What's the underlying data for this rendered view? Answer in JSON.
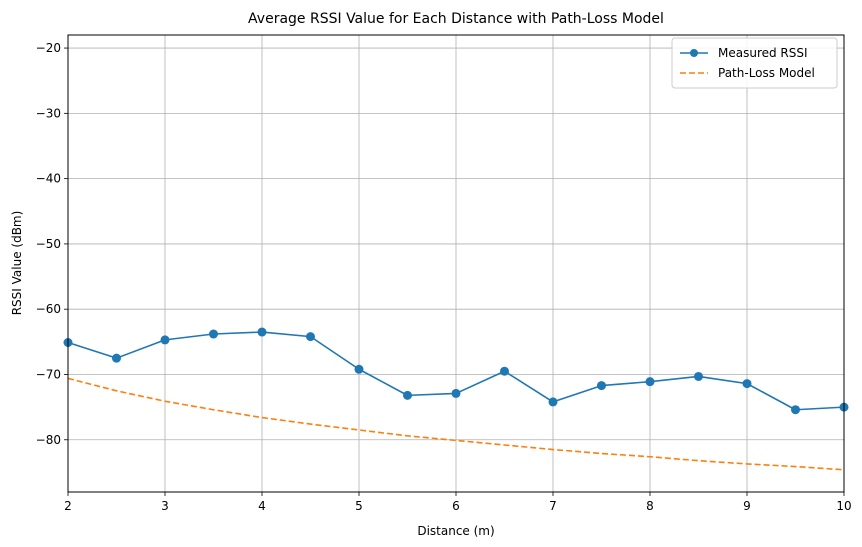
{
  "chart_data": {
    "type": "line",
    "title": "Average RSSI Value for Each Distance with Path-Loss Model",
    "xlabel": "Distance (m)",
    "ylabel": "RSSI Value (dBm)",
    "xlim": [
      2,
      10
    ],
    "ylim": [
      -88,
      -18
    ],
    "xticks": [
      2,
      3,
      4,
      5,
      6,
      7,
      8,
      9,
      10
    ],
    "yticks": [
      -80,
      -70,
      -60,
      -50,
      -40,
      -30,
      -20
    ],
    "grid": true,
    "legend_position": "top-right",
    "series": [
      {
        "name": "Measured RSSI",
        "style": "solid-marker",
        "color": "#1f77b4",
        "x": [
          2,
          2.5,
          3,
          3.5,
          4,
          4.5,
          5,
          5.5,
          6,
          6.5,
          7,
          7.5,
          8,
          8.5,
          9,
          9.5,
          10
        ],
        "y": [
          -65.1,
          -67.5,
          -64.7,
          -63.8,
          -63.5,
          -64.2,
          -69.2,
          -73.2,
          -72.9,
          -69.5,
          -74.2,
          -71.7,
          -71.1,
          -70.3,
          -71.4,
          -75.4,
          -75.0
        ]
      },
      {
        "name": "Path-Loss Model",
        "style": "dashed",
        "color": "#ff7f0e",
        "x": [
          2,
          2.5,
          3,
          3.5,
          4,
          4.5,
          5,
          5.5,
          6,
          6.5,
          7,
          7.5,
          8,
          8.5,
          9,
          9.5,
          10
        ],
        "y": [
          -70.6,
          -72.5,
          -74.1,
          -75.4,
          -76.6,
          -77.6,
          -78.5,
          -79.4,
          -80.1,
          -80.8,
          -81.5,
          -82.1,
          -82.6,
          -83.2,
          -83.7,
          -84.1,
          -84.6
        ]
      }
    ]
  }
}
